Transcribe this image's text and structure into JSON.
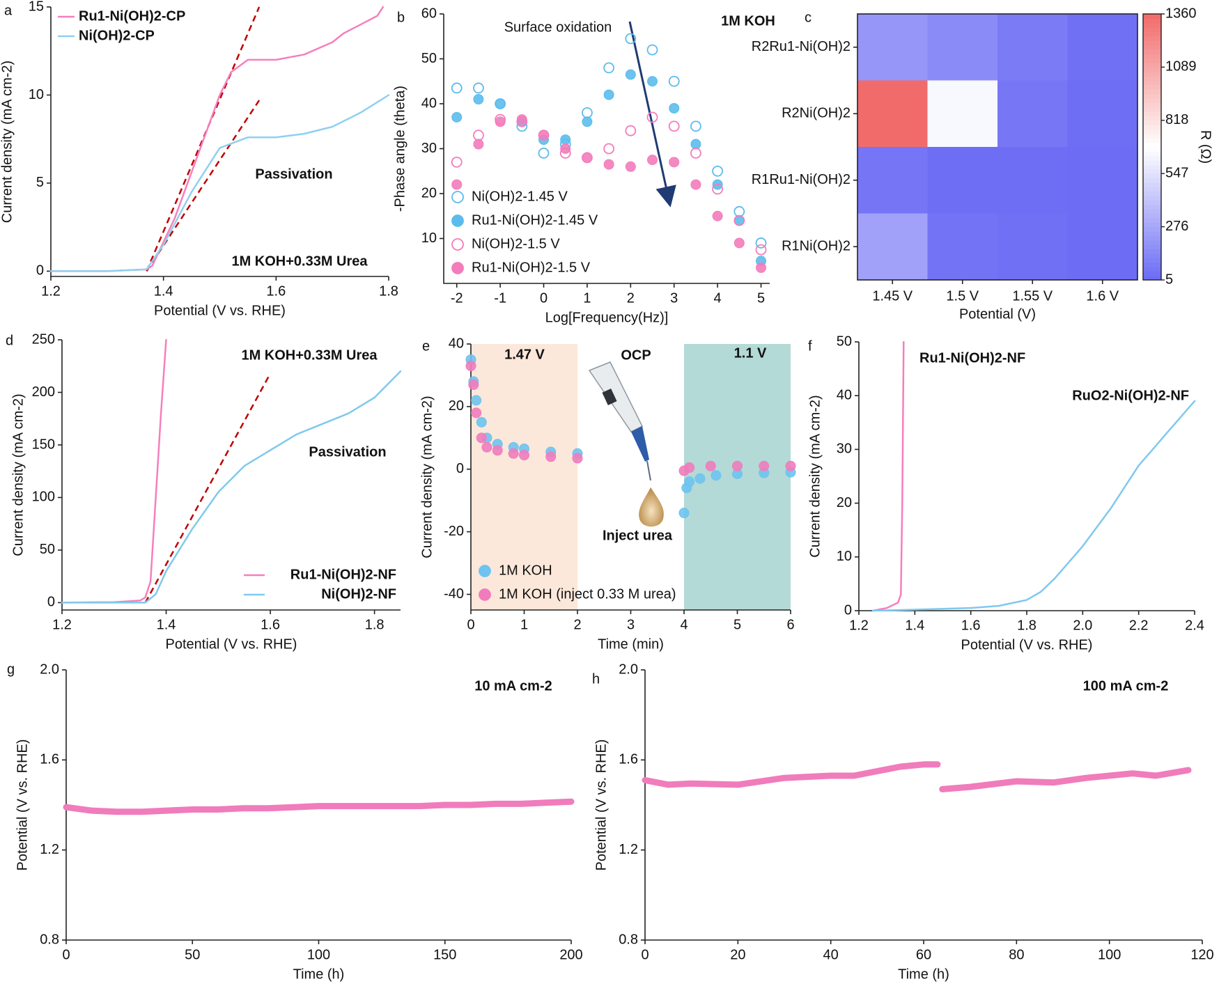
{
  "chart_data": [
    {
      "type": "line",
      "panel": "a",
      "xlabel": "Potential (V vs. RHE)",
      "ylabel": "Current density (mA cm-2)",
      "xlim": [
        1.2,
        1.8
      ],
      "xticks": [
        1.2,
        1.4,
        1.6,
        1.8
      ],
      "ylim": [
        -0.3,
        15
      ],
      "yticks": [
        0,
        5,
        10,
        15
      ],
      "legend": "upper left",
      "legend_text_colored": true,
      "series": [
        {
          "name": "Ru1-Ni(OH)2-CP",
          "color": "#f57fbd",
          "x": [
            1.2,
            1.3,
            1.37,
            1.38,
            1.42,
            1.46,
            1.5,
            1.52,
            1.55,
            1.6,
            1.65,
            1.7,
            1.72,
            1.75,
            1.78,
            1.79
          ],
          "values": [
            0,
            0,
            0.1,
            0.3,
            3,
            6.5,
            10,
            11.3,
            12,
            12,
            12.3,
            13,
            13.5,
            14,
            14.5,
            15
          ]
        },
        {
          "name": "Ni(OH)2-CP",
          "color": "#8fd0ef",
          "x": [
            1.2,
            1.3,
            1.37,
            1.4,
            1.45,
            1.5,
            1.55,
            1.6,
            1.65,
            1.7,
            1.75,
            1.8
          ],
          "values": [
            0,
            0,
            0.1,
            1.5,
            4.5,
            7,
            7.6,
            7.6,
            7.8,
            8.2,
            9,
            10
          ]
        }
      ],
      "fit_lines": [
        {
          "x": [
            1.37,
            1.57
          ],
          "values": [
            0,
            15
          ],
          "color": "#c00000",
          "style": "dashed"
        },
        {
          "x": [
            1.37,
            1.57
          ],
          "values": [
            0,
            9.7
          ],
          "color": "#c00000",
          "style": "dashed"
        }
      ],
      "annotations": [
        "Passivation",
        "1M KOH+0.33M Urea"
      ]
    },
    {
      "type": "scatter",
      "panel": "b",
      "xlabel": "Log[Frequency(Hz)]",
      "ylabel": "-Phase angle (theta)",
      "xlim": [
        -2.3,
        5.2
      ],
      "xticks": [
        -2,
        -1,
        0,
        1,
        2,
        3,
        4,
        5
      ],
      "ylim": [
        0,
        60
      ],
      "yticks": [
        10,
        20,
        30,
        40,
        50,
        60
      ],
      "legend": "lower left",
      "legend_text_colored": false,
      "x": [
        -2,
        -1.5,
        -1,
        -0.5,
        0,
        0.5,
        1,
        1.5,
        2,
        2.5,
        3,
        3.5,
        4,
        4.5,
        5
      ],
      "series": [
        {
          "name": "Ni(OH)2-1.45 V",
          "color": "#5bbcec",
          "marker": "open",
          "values": [
            43.5,
            43.5,
            40,
            35,
            29,
            31,
            38,
            48,
            54.5,
            52,
            45,
            35,
            25,
            16,
            9
          ]
        },
        {
          "name": "Ru1-Ni(OH)2-1.45 V",
          "color": "#5bbcec",
          "marker": "filled",
          "values": [
            37,
            41,
            40,
            36,
            32,
            32,
            36,
            42,
            46.5,
            45,
            39,
            31,
            22,
            14,
            5
          ]
        },
        {
          "name": "Ni(OH)2-1.5 V",
          "color": "#f37cbb",
          "marker": "open",
          "values": [
            27,
            33,
            36.5,
            36,
            33,
            29,
            28,
            30,
            34,
            37,
            35,
            29,
            21,
            14,
            7.5
          ]
        },
        {
          "name": "Ru1-Ni(OH)2-1.5 V",
          "color": "#f37cbb",
          "marker": "filled",
          "values": [
            22,
            31,
            36,
            36.5,
            33,
            30,
            28,
            26.5,
            26,
            27.5,
            27,
            22,
            15,
            9,
            3.5
          ]
        }
      ],
      "annotations": [
        "Surface oxidation",
        "1M KOH"
      ]
    },
    {
      "type": "heatmap",
      "panel": "c",
      "xlabel": "Potential (V)",
      "colorbar_label": "R (Ω)",
      "categories": [
        "1.45 V",
        "1.5 V",
        "1.55 V",
        "1.6 V"
      ],
      "rows": [
        "R2Ru1-Ni(OH)2",
        "R2Ni(OH)2",
        "R1Ru1-Ni(OH)2",
        "R1Ni(OH)2"
      ],
      "values": [
        [
          200,
          150,
          80,
          30
        ],
        [
          1360,
          650,
          60,
          20
        ],
        [
          50,
          20,
          20,
          10
        ],
        [
          250,
          40,
          30,
          10
        ]
      ],
      "zlim": [
        5,
        1360
      ],
      "zticks": [
        5,
        276,
        547,
        818,
        1089,
        1360
      ],
      "colormap": [
        "#6b6bf5",
        "#ffffff",
        "#f26b6b"
      ]
    },
    {
      "type": "line",
      "panel": "d",
      "xlabel": "Potential (V vs. RHE)",
      "ylabel": "Current density (mA cm-2)",
      "xlim": [
        1.2,
        1.85
      ],
      "xticks": [
        1.2,
        1.4,
        1.6,
        1.8
      ],
      "ylim": [
        -7,
        250
      ],
      "yticks": [
        0,
        50,
        100,
        150,
        200,
        250
      ],
      "legend": "lower right",
      "legend_text_colored": true,
      "series": [
        {
          "name": "Ru1-Ni(OH)2-NF",
          "color": "#f57fbd",
          "x": [
            1.2,
            1.3,
            1.35,
            1.36,
            1.37,
            1.38,
            1.39,
            1.4
          ],
          "values": [
            0,
            0.5,
            2,
            5,
            20,
            100,
            180,
            250
          ]
        },
        {
          "name": "Ni(OH)2-NF",
          "color": "#7fc9ee",
          "x": [
            1.2,
            1.3,
            1.36,
            1.38,
            1.4,
            1.45,
            1.5,
            1.55,
            1.6,
            1.65,
            1.7,
            1.75,
            1.8,
            1.85
          ],
          "values": [
            0,
            0,
            0,
            8,
            30,
            70,
            105,
            130,
            145,
            160,
            170,
            180,
            195,
            220
          ]
        }
      ],
      "fit_lines": [
        {
          "x": [
            1.36,
            1.6
          ],
          "values": [
            0,
            218
          ],
          "color": "#c00000",
          "style": "dashed"
        }
      ],
      "annotations": [
        "1M KOH+0.33M Urea",
        "Passivation"
      ]
    },
    {
      "type": "scatter",
      "panel": "e",
      "xlabel": "Time (min)",
      "ylabel": "Current density (mA cm-2)",
      "xlim": [
        0,
        6
      ],
      "xticks": [
        0,
        1,
        2,
        3,
        4,
        5,
        6
      ],
      "ylim": [
        -45,
        40
      ],
      "yticks": [
        -40,
        -20,
        0,
        20,
        40
      ],
      "legend": "lower left",
      "legend_text_colored": false,
      "spans": [
        {
          "x": [
            0,
            2
          ],
          "color": "#fbe8da"
        },
        {
          "x": [
            4,
            6
          ],
          "color": "#b3dad6"
        }
      ],
      "series": [
        {
          "name": "1M KOH",
          "color": "#6ec3f0",
          "marker": "filled",
          "x": [
            0,
            0.05,
            0.1,
            0.2,
            0.3,
            0.5,
            0.8,
            1,
            1.5,
            2,
            4,
            4.05,
            4.1,
            4.3,
            4.6,
            5,
            5.5,
            6
          ],
          "values": [
            35,
            28,
            22,
            15,
            10,
            8,
            7,
            6.5,
            5.5,
            5,
            -14,
            -6,
            -4,
            -3,
            -2,
            -1.5,
            -1.2,
            -1
          ]
        },
        {
          "name": "1M KOH (inject 0.33 M urea)",
          "color": "#f07cbc",
          "marker": "filled",
          "x": [
            0,
            0.05,
            0.1,
            0.2,
            0.3,
            0.5,
            0.8,
            1,
            1.5,
            2,
            4,
            4.1,
            4.5,
            5,
            5.5,
            6
          ],
          "values": [
            33,
            27,
            18,
            10,
            7,
            6,
            5,
            4.5,
            4,
            3.5,
            -0.5,
            0.5,
            1,
            1,
            1,
            1
          ]
        }
      ],
      "annotations": [
        "1.47 V",
        "OCP",
        "1.1 V",
        "Inject urea"
      ]
    },
    {
      "type": "line",
      "panel": "f",
      "xlabel": "Potential (V vs. RHE)",
      "ylabel": "Current density (mA cm-2)",
      "xlim": [
        1.2,
        2.4
      ],
      "xticks": [
        1.2,
        1.4,
        1.6,
        1.8,
        {
          "value": 2,
          "label": "2.0"
        },
        2.2,
        2.4
      ],
      "ylim": [
        0,
        50
      ],
      "yticks": [
        0,
        10,
        20,
        30,
        40,
        50
      ],
      "legend": "upper right",
      "legend_text_colored": true,
      "series": [
        {
          "name": "Ru1-Ni(OH)2-NF",
          "color": "#f57fbd",
          "x": [
            1.25,
            1.3,
            1.34,
            1.35,
            1.355,
            1.36
          ],
          "values": [
            0,
            0.5,
            1.5,
            3,
            20,
            50
          ]
        },
        {
          "name": "RuO2-Ni(OH)2-NF",
          "color": "#7fc9ee",
          "x": [
            1.25,
            1.4,
            1.6,
            1.7,
            1.8,
            1.85,
            1.9,
            2.0,
            2.1,
            2.2,
            2.25,
            2.3,
            2.35,
            2.4
          ],
          "values": [
            0,
            0.2,
            0.5,
            0.9,
            2,
            3.5,
            6,
            12,
            19,
            27,
            30,
            33,
            36,
            39
          ]
        }
      ]
    },
    {
      "type": "line",
      "panel": "g",
      "xlabel": "Time (h)",
      "ylabel": "Potential (V vs. RHE)",
      "xlim": [
        0,
        200
      ],
      "xticks": [
        0,
        50,
        100,
        150,
        200
      ],
      "ylim": [
        0.8,
        2.0
      ],
      "yticks": [
        0.8,
        1.2,
        1.6,
        {
          "value": 2,
          "label": "2.0"
        }
      ],
      "x": [
        0,
        10,
        20,
        30,
        40,
        50,
        60,
        70,
        80,
        90,
        100,
        110,
        120,
        130,
        140,
        150,
        160,
        170,
        180,
        190,
        200
      ],
      "series": [
        {
          "color": "#f07cbc",
          "values": [
            1.39,
            1.375,
            1.37,
            1.37,
            1.375,
            1.38,
            1.38,
            1.385,
            1.385,
            1.39,
            1.395,
            1.395,
            1.395,
            1.395,
            1.395,
            1.4,
            1.4,
            1.405,
            1.405,
            1.41,
            1.415
          ]
        }
      ],
      "annotations": [
        "10 mA cm-2"
      ]
    },
    {
      "type": "line",
      "panel": "h",
      "xlabel": "Time (h)",
      "ylabel": "Potential (V vs. RHE)",
      "xlim": [
        0,
        120
      ],
      "xticks": [
        0,
        20,
        40,
        60,
        80,
        100,
        120
      ],
      "ylim": [
        0.8,
        2.0
      ],
      "yticks": [
        0.8,
        1.2,
        1.6,
        {
          "value": 2,
          "label": "2.0"
        }
      ],
      "x": [
        0,
        5,
        10,
        20,
        30,
        40,
        45,
        50,
        55,
        60,
        63,
        63.5,
        64,
        70,
        80,
        88,
        95,
        105,
        110,
        117
      ],
      "series": [
        {
          "color": "#f07cbc",
          "values": [
            1.51,
            1.49,
            1.495,
            1.49,
            1.52,
            1.53,
            1.53,
            1.55,
            1.57,
            1.58,
            1.58,
            null,
            1.47,
            1.48,
            1.505,
            1.5,
            1.52,
            1.54,
            1.53,
            1.555
          ]
        }
      ],
      "annotations": [
        "100 mA cm-2"
      ]
    }
  ]
}
